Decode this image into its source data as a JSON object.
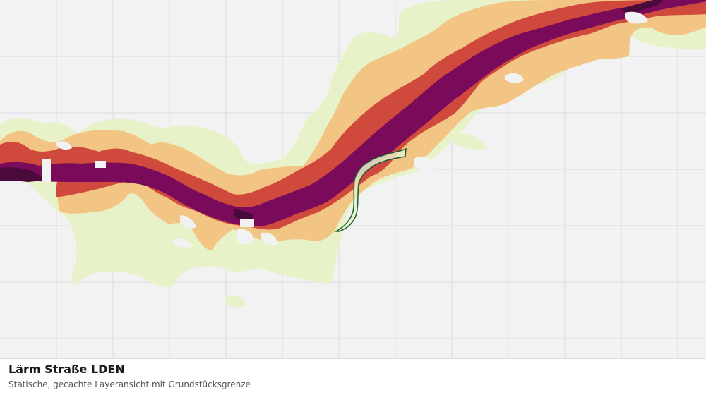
{
  "map": {
    "colors": {
      "background": "#f2f2f2",
      "grid": "#dcdcdc",
      "band_lowest": "#e8f2c8",
      "band_low": "#f3c585",
      "band_mid": "#cf4a3c",
      "band_high": "#7a0a5a",
      "band_highest": "#4a0a3c",
      "parcel_fill": "#e8f2c8",
      "parcel_stroke": "#1f5c34"
    }
  },
  "caption": {
    "title": "Lärm Straße LDEN",
    "subtitle": "Statische, gecachte Layeransicht mit Grundstücksgrenze"
  }
}
